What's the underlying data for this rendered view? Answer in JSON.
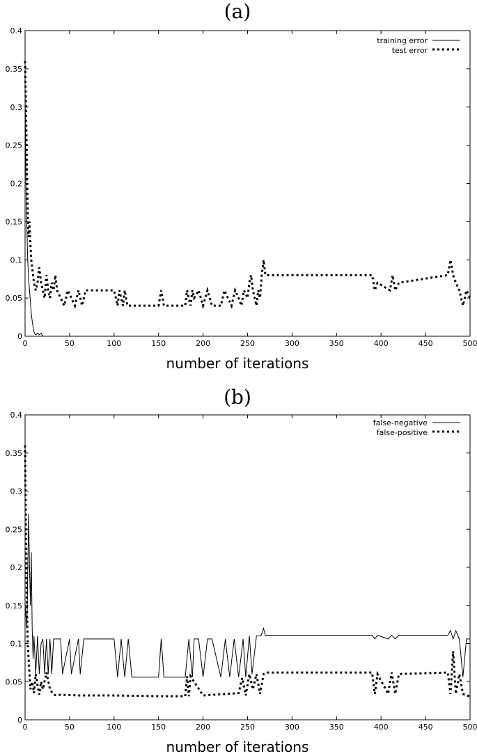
{
  "chart_data": [
    {
      "type": "line",
      "panel_label": "(a)",
      "xlabel": "number of iterations",
      "ylabel": "",
      "xlim": [
        0,
        500
      ],
      "ylim": [
        0,
        0.4
      ],
      "xticks": [
        "0",
        "50",
        "100",
        "150",
        "200",
        "250",
        "300",
        "350",
        "400",
        "450",
        "500"
      ],
      "yticks": [
        "0",
        "0.05",
        "0.1",
        "0.15",
        "0.2",
        "0.25",
        "0.3",
        "0.35",
        "0.4"
      ],
      "legend_position": "top-right",
      "series": [
        {
          "name": "training error",
          "style": "solid",
          "x": [
            0,
            1,
            2,
            3,
            4,
            5,
            6,
            7,
            8,
            9,
            10,
            11,
            12,
            14,
            16,
            18,
            20,
            40,
            100,
            200,
            300,
            400,
            500
          ],
          "y": [
            0.32,
            0.2,
            0.14,
            0.1,
            0.075,
            0.06,
            0.045,
            0.03,
            0.02,
            0.012,
            0.006,
            0.003,
            0.002,
            0.004,
            0.002,
            0.004,
            0.0,
            0.0,
            0.0,
            0.0,
            0.0,
            0.0,
            0.0
          ]
        },
        {
          "name": "test error",
          "style": "dotted",
          "x": [
            0,
            1,
            2,
            3,
            4,
            5,
            6,
            7,
            8,
            9,
            10,
            12,
            14,
            16,
            18,
            20,
            22,
            24,
            26,
            28,
            30,
            32,
            34,
            36,
            40,
            44,
            48,
            52,
            56,
            60,
            64,
            68,
            72,
            100,
            102,
            104,
            106,
            108,
            110,
            112,
            115,
            120,
            150,
            153,
            156,
            180,
            182,
            184,
            186,
            188,
            190,
            195,
            200,
            205,
            210,
            220,
            224,
            228,
            232,
            236,
            240,
            243,
            246,
            250,
            252,
            254,
            256,
            260,
            262,
            264,
            266,
            268,
            270,
            272,
            390,
            393,
            396,
            410,
            413,
            416,
            420,
            475,
            478,
            481,
            484,
            488,
            492,
            496,
            500
          ],
          "y": [
            0.36,
            0.3,
            0.22,
            0.16,
            0.13,
            0.15,
            0.12,
            0.1,
            0.09,
            0.08,
            0.07,
            0.06,
            0.07,
            0.09,
            0.07,
            0.06,
            0.05,
            0.08,
            0.06,
            0.05,
            0.07,
            0.06,
            0.08,
            0.06,
            0.05,
            0.04,
            0.06,
            0.05,
            0.04,
            0.06,
            0.04,
            0.06,
            0.06,
            0.06,
            0.05,
            0.04,
            0.06,
            0.05,
            0.04,
            0.06,
            0.04,
            0.04,
            0.04,
            0.06,
            0.04,
            0.04,
            0.06,
            0.05,
            0.04,
            0.06,
            0.05,
            0.06,
            0.04,
            0.06,
            0.04,
            0.04,
            0.06,
            0.05,
            0.04,
            0.06,
            0.05,
            0.04,
            0.06,
            0.05,
            0.07,
            0.08,
            0.06,
            0.04,
            0.06,
            0.05,
            0.08,
            0.1,
            0.08,
            0.08,
            0.08,
            0.06,
            0.07,
            0.06,
            0.08,
            0.06,
            0.07,
            0.08,
            0.1,
            0.08,
            0.07,
            0.06,
            0.04,
            0.06,
            0.05
          ]
        }
      ]
    },
    {
      "type": "line",
      "panel_label": "(b)",
      "xlabel": "number of iterations",
      "ylabel": "",
      "xlim": [
        0,
        500
      ],
      "ylim": [
        0,
        0.4
      ],
      "xticks": [
        "0",
        "50",
        "100",
        "150",
        "200",
        "250",
        "300",
        "350",
        "400",
        "450",
        "500"
      ],
      "yticks": [
        "0",
        "0.05",
        "0.1",
        "0.15",
        "0.2",
        "0.25",
        "0.3",
        "0.35",
        "0.4"
      ],
      "legend_position": "top-right",
      "series": [
        {
          "name": "false-negative",
          "style": "solid",
          "x": [
            0,
            2,
            4,
            5,
            6,
            7,
            8,
            9,
            10,
            12,
            14,
            16,
            18,
            20,
            22,
            24,
            26,
            28,
            30,
            32,
            35,
            38,
            40,
            42,
            50,
            52,
            60,
            62,
            66,
            70,
            75,
            100,
            104,
            108,
            112,
            116,
            120,
            150,
            153,
            156,
            180,
            184,
            188,
            190,
            195,
            200,
            205,
            210,
            220,
            225,
            230,
            235,
            240,
            245,
            248,
            252,
            255,
            260,
            265,
            268,
            270,
            272,
            390,
            393,
            396,
            408,
            412,
            416,
            420,
            475,
            478,
            481,
            484,
            488,
            492,
            496,
            500
          ],
          "y": [
            0.15,
            0.12,
            0.27,
            0.2,
            0.15,
            0.22,
            0.12,
            0.08,
            0.11,
            0.06,
            0.11,
            0.06,
            0.1,
            0.106,
            0.06,
            0.106,
            0.06,
            0.106,
            0.06,
            0.106,
            0.106,
            0.106,
            0.106,
            0.06,
            0.106,
            0.06,
            0.106,
            0.06,
            0.106,
            0.106,
            0.106,
            0.106,
            0.056,
            0.106,
            0.056,
            0.106,
            0.056,
            0.056,
            0.106,
            0.056,
            0.056,
            0.106,
            0.056,
            0.106,
            0.106,
            0.056,
            0.106,
            0.106,
            0.056,
            0.106,
            0.056,
            0.106,
            0.056,
            0.106,
            0.056,
            0.11,
            0.06,
            0.11,
            0.11,
            0.12,
            0.11,
            0.111,
            0.111,
            0.106,
            0.111,
            0.106,
            0.111,
            0.106,
            0.111,
            0.111,
            0.117,
            0.106,
            0.117,
            0.106,
            0.056,
            0.106,
            0.106
          ]
        },
        {
          "name": "false-positive",
          "style": "dotted",
          "x": [
            0,
            1,
            2,
            3,
            4,
            5,
            6,
            8,
            10,
            12,
            14,
            16,
            18,
            20,
            24,
            28,
            32,
            36,
            40,
            60,
            100,
            150,
            180,
            182,
            184,
            186,
            200,
            240,
            244,
            248,
            252,
            256,
            260,
            264,
            268,
            272,
            390,
            393,
            396,
            408,
            412,
            416,
            420,
            475,
            478,
            481,
            484,
            488,
            492,
            496,
            500
          ],
          "y": [
            0.36,
            0.25,
            0.15,
            0.1,
            0.08,
            0.06,
            0.04,
            0.05,
            0.035,
            0.06,
            0.045,
            0.033,
            0.05,
            0.04,
            0.062,
            0.04,
            0.033,
            0.032,
            0.033,
            0.032,
            0.032,
            0.031,
            0.031,
            0.057,
            0.031,
            0.057,
            0.032,
            0.035,
            0.055,
            0.032,
            0.06,
            0.04,
            0.06,
            0.034,
            0.06,
            0.062,
            0.062,
            0.034,
            0.06,
            0.034,
            0.062,
            0.034,
            0.06,
            0.062,
            0.034,
            0.09,
            0.034,
            0.06,
            0.034,
            0.032,
            0.031
          ]
        }
      ]
    }
  ]
}
